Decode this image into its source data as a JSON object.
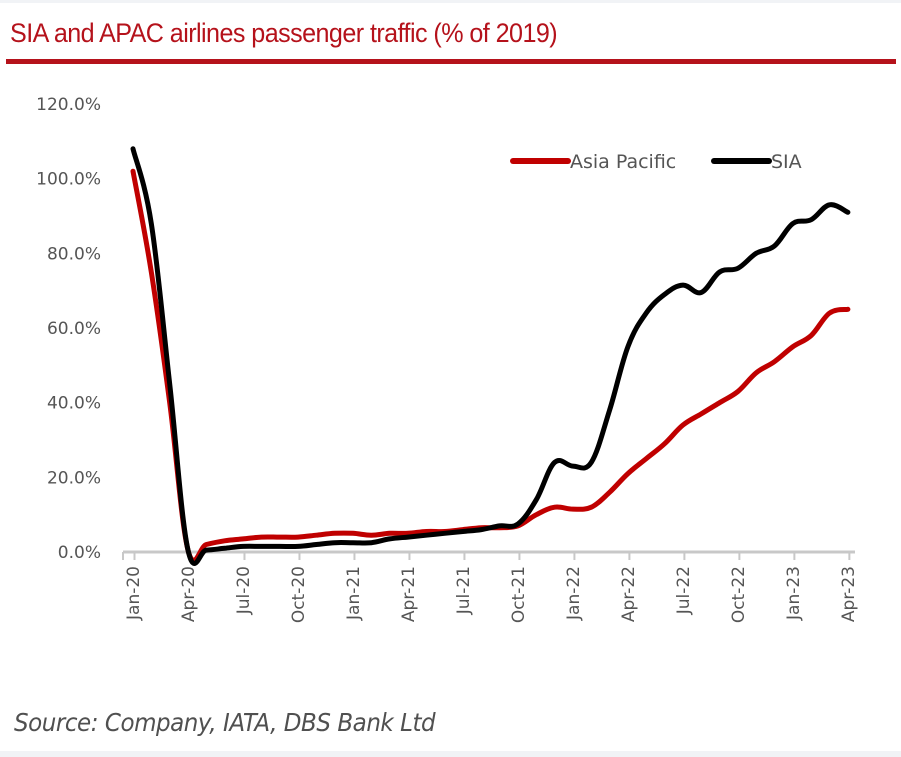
{
  "header": {
    "title": "SIA and APAC airlines passenger traffic (% of 2019)"
  },
  "footer": {
    "source": "Source: Company, IATA, DBS Bank Ltd"
  },
  "colors": {
    "title": "#b5121b",
    "asia_pacific": "#c00000",
    "sia": "#000000",
    "axis": "#c8c8c8",
    "tick_text": "#555555"
  },
  "chart_data": {
    "type": "line",
    "title": "SIA and APAC airlines passenger traffic (% of 2019)",
    "xlabel": "",
    "ylabel": "",
    "ylim": [
      0,
      120
    ],
    "yticks": [
      0,
      20,
      40,
      60,
      80,
      100,
      120
    ],
    "ytick_labels": [
      "0.0%",
      "20.0%",
      "40.0%",
      "60.0%",
      "80.0%",
      "100.0%",
      "120.0%"
    ],
    "xtick_labels": [
      "Jan-20",
      "Apr-20",
      "Jul-20",
      "Oct-20",
      "Jan-21",
      "Apr-21",
      "Jul-21",
      "Oct-21",
      "Jan-22",
      "Apr-22",
      "Jul-22",
      "Oct-22",
      "Jan-23",
      "Apr-23"
    ],
    "grid": false,
    "legend_position": "top-right",
    "x": [
      "Jan-20",
      "Feb-20",
      "Mar-20",
      "Apr-20",
      "May-20",
      "Jun-20",
      "Jul-20",
      "Aug-20",
      "Sep-20",
      "Oct-20",
      "Nov-20",
      "Dec-20",
      "Jan-21",
      "Feb-21",
      "Mar-21",
      "Apr-21",
      "May-21",
      "Jun-21",
      "Jul-21",
      "Aug-21",
      "Sep-21",
      "Oct-21",
      "Nov-21",
      "Dec-21",
      "Jan-22",
      "Feb-22",
      "Mar-22",
      "Apr-22",
      "May-22",
      "Jun-22",
      "Jul-22",
      "Aug-22",
      "Sep-22",
      "Oct-22",
      "Nov-22",
      "Dec-22",
      "Jan-23",
      "Feb-23",
      "Mar-23",
      "Apr-23"
    ],
    "series": [
      {
        "name": "Asia Pacific",
        "color": "#c00000",
        "values": [
          102,
          75,
          40,
          0.5,
          2,
          3,
          3.5,
          4,
          4,
          4,
          4.5,
          5,
          5,
          4.5,
          5,
          5,
          5.5,
          5.5,
          6,
          6.5,
          6.5,
          7,
          10,
          12,
          11.5,
          12,
          16,
          21,
          25,
          29,
          34,
          37,
          40,
          43,
          48,
          51,
          55,
          58,
          64,
          65
        ]
      },
      {
        "name": "SIA",
        "color": "#000000",
        "values": [
          108,
          88,
          45,
          0.5,
          0.5,
          1,
          1.5,
          1.5,
          1.5,
          1.5,
          2,
          2.5,
          2.5,
          2.5,
          3.5,
          4,
          4.5,
          5,
          5.5,
          6,
          7,
          7.5,
          14,
          24,
          23,
          24,
          38,
          55,
          64,
          69,
          71.5,
          69.5,
          75,
          76,
          80,
          82,
          88,
          89,
          93,
          91
        ]
      }
    ]
  }
}
